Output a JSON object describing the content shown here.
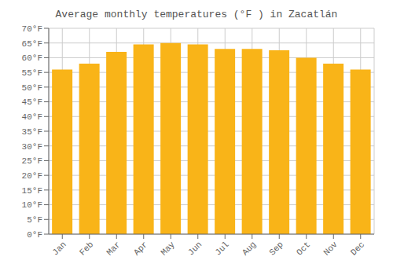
{
  "chart_data": {
    "type": "bar",
    "title": "Average monthly temperatures (°F ) in Zacatlán",
    "categories": [
      "Jan",
      "Feb",
      "Mar",
      "Apr",
      "May",
      "Jun",
      "Jul",
      "Aug",
      "Sep",
      "Oct",
      "Nov",
      "Dec"
    ],
    "values": [
      56,
      58,
      62,
      64.5,
      65,
      64.5,
      63,
      63,
      62.5,
      60,
      58,
      56
    ],
    "color": "#F9B418",
    "ylim": [
      0,
      70
    ],
    "yticks": [
      {
        "value": 0,
        "label": "0°F"
      },
      {
        "value": 5,
        "label": "5°F"
      },
      {
        "value": 10,
        "label": "10°F"
      },
      {
        "value": 15,
        "label": "15°F"
      },
      {
        "value": 20,
        "label": "20°F"
      },
      {
        "value": 25,
        "label": "25°F"
      },
      {
        "value": 30,
        "label": "30°F"
      },
      {
        "value": 35,
        "label": "35°F"
      },
      {
        "value": 40,
        "label": "40°F"
      },
      {
        "value": 45,
        "label": "45°F"
      },
      {
        "value": 50,
        "label": "50°F"
      },
      {
        "value": 55,
        "label": "55°F"
      },
      {
        "value": 60,
        "label": "60°F"
      },
      {
        "value": 65,
        "label": "65°F"
      },
      {
        "value": 70,
        "label": "70°F"
      }
    ],
    "grid": true
  }
}
